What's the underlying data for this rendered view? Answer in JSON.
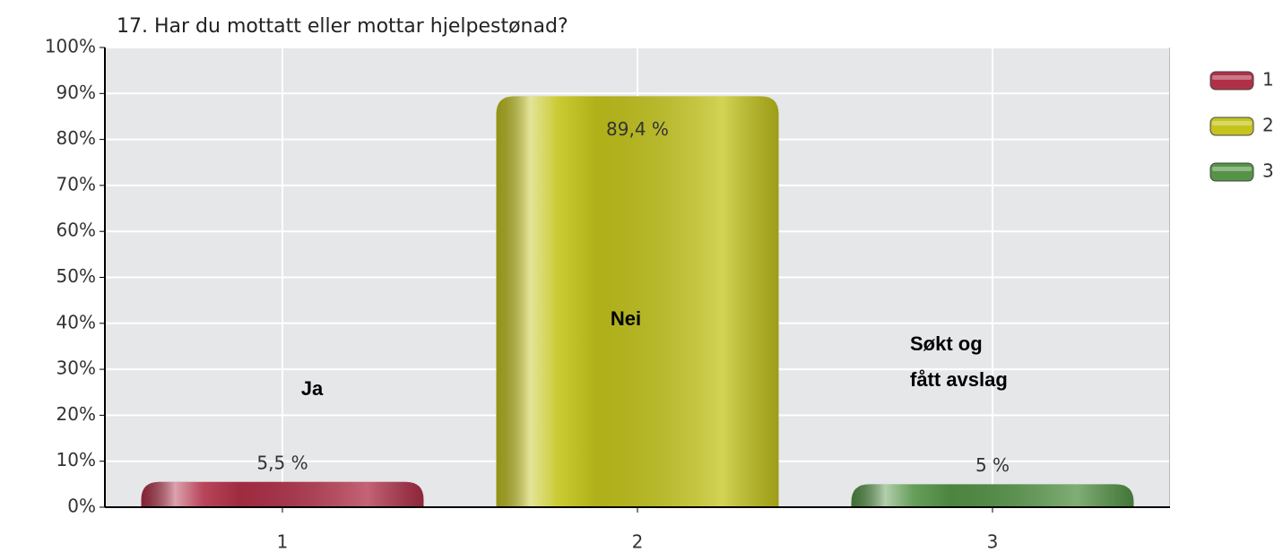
{
  "chart_data": {
    "type": "bar",
    "title": "17. Har du mottatt eller mottar hjelpestønad?",
    "categories": [
      "1",
      "2",
      "3"
    ],
    "values": [
      5.5,
      89.4,
      5
    ],
    "value_labels": [
      "5,5 %",
      "89,4 %",
      "5 %"
    ],
    "colors": [
      "#b03048",
      "#c4c41c",
      "#559447"
    ],
    "annotations": [
      "Ja",
      "Nei",
      "Søkt og\nfått avslag"
    ],
    "ylim": [
      0,
      100
    ],
    "yticks": [
      {
        "value": 0,
        "label": "0%"
      },
      {
        "value": 10,
        "label": "10%"
      },
      {
        "value": 20,
        "label": "20%"
      },
      {
        "value": 30,
        "label": "30%"
      },
      {
        "value": 40,
        "label": "40%"
      },
      {
        "value": 50,
        "label": "50%"
      },
      {
        "value": 60,
        "label": "60%"
      },
      {
        "value": 70,
        "label": "70%"
      },
      {
        "value": 80,
        "label": "80%"
      },
      {
        "value": 90,
        "label": "90%"
      },
      {
        "value": 100,
        "label": "100%"
      }
    ],
    "grid": true,
    "legend": "right"
  }
}
